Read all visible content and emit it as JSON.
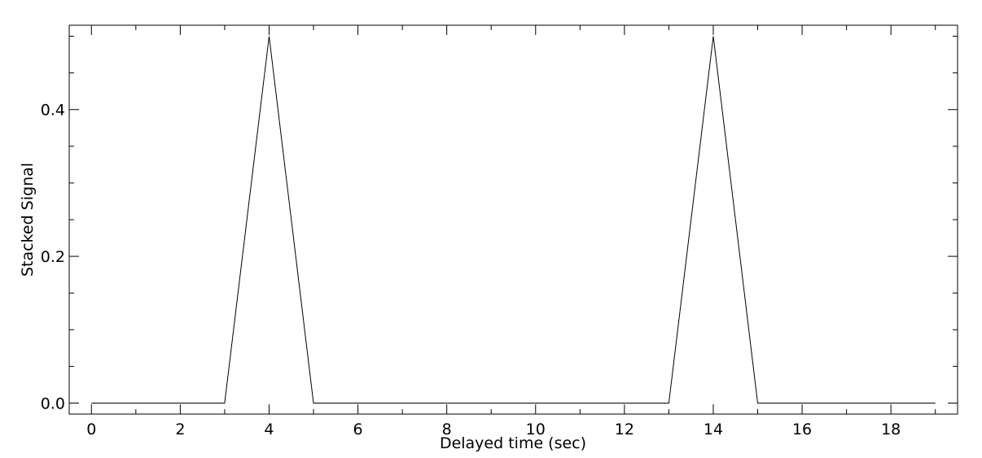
{
  "chart_data": {
    "type": "line",
    "title": "",
    "xlabel": "Delayed time (sec)",
    "ylabel": "Stacked Signal",
    "xlim": [
      -0.5,
      19.5
    ],
    "ylim": [
      -0.015,
      0.515
    ],
    "xticks": [
      0,
      2,
      4,
      6,
      8,
      10,
      12,
      14,
      16,
      18
    ],
    "xtick_labels": [
      "0",
      "2",
      "4",
      "6",
      "8",
      "10",
      "12",
      "14",
      "16",
      "18"
    ],
    "yticks": [
      0.0,
      0.2,
      0.4
    ],
    "ytick_labels": [
      "0.0",
      "0.2",
      "0.4"
    ],
    "grid": false,
    "legend": "none",
    "series": [
      {
        "x": [
          0,
          3,
          4,
          5,
          13,
          14,
          15,
          19
        ],
        "y": [
          0,
          0,
          0.5,
          0,
          0,
          0.5,
          0,
          0
        ]
      }
    ],
    "colors": {
      "line": "#000000",
      "axes": "#000000",
      "background": "#ffffff"
    }
  }
}
